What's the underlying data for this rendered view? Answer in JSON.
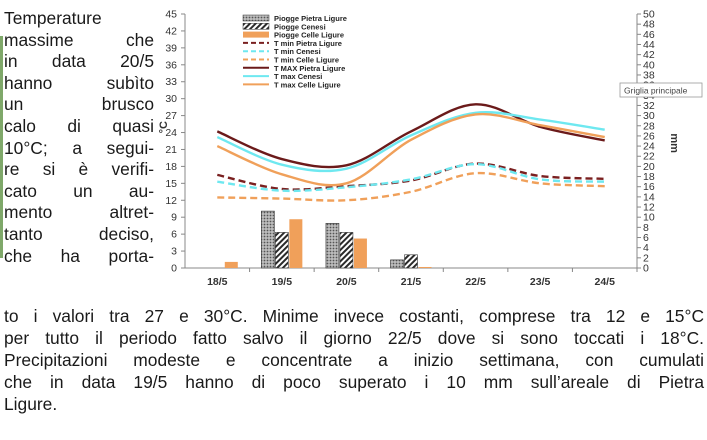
{
  "side_text": [
    "Temperature",
    "massime che",
    "in data 20/5",
    "hanno subìto",
    "un brusco",
    "calo di quasi",
    "10°C; a segui-",
    "re si è verifi-",
    "cato un au-",
    "mento altret-",
    "tanto deciso,",
    "che ha porta-"
  ],
  "bottom_text": [
    "to i valori tra 27 e 30°C. Minime invece costanti, comprese tra 12 e 15°C",
    "per tutto il periodo fatto salvo il giorno 22/5 dove si sono toccati i 18°C.",
    "Precipitazioni modeste e concentrate a inizio settimana, con cumulati",
    "che in data 19/5 hanno di poco superato i 10 mm sull’areale di Pietra",
    "Ligure."
  ],
  "tooltip": "Griglia principale",
  "chart_data": {
    "type": "line",
    "categories": [
      "18/5",
      "19/5",
      "20/5",
      "21/5",
      "22/5",
      "23/5",
      "24/5"
    ],
    "ylabel": "°C",
    "y2label": "mm",
    "ylim": [
      0,
      45
    ],
    "yticks": [
      0,
      3,
      6,
      9,
      12,
      15,
      18,
      21,
      24,
      27,
      30,
      33,
      36,
      39,
      42,
      45
    ],
    "y2lim": [
      0,
      50
    ],
    "y2ticks": [
      0,
      2,
      4,
      6,
      8,
      10,
      12,
      14,
      16,
      18,
      20,
      22,
      24,
      26,
      28,
      30,
      32,
      34,
      36,
      38,
      40,
      42,
      44,
      46,
      48,
      50
    ],
    "legend_position": "top-left",
    "grid": false,
    "bars": [
      {
        "name": "Piogge Pietra Ligure",
        "color": "#9a9a9a",
        "pattern": "dots",
        "values": [
          0,
          11.2,
          8.8,
          1.6,
          0,
          0,
          0
        ]
      },
      {
        "name": "Piogge Cenesi",
        "color": "#2a2a2a",
        "pattern": "hatch",
        "values": [
          0,
          7.0,
          7.0,
          2.6,
          0,
          0,
          0
        ]
      },
      {
        "name": "Piogge Celle Ligure",
        "color": "#f0a05a",
        "pattern": "solid",
        "values": [
          1.2,
          9.6,
          5.8,
          0.2,
          0,
          0,
          0
        ]
      }
    ],
    "lines": [
      {
        "name": "T min Pietra Ligure",
        "color": "#7a2020",
        "dash": "dashed",
        "values": [
          16.5,
          14.0,
          14.5,
          15.5,
          18.5,
          16.3,
          15.8
        ]
      },
      {
        "name": "T min Cenesi",
        "color": "#6ee8f0",
        "dash": "dashed",
        "values": [
          15.3,
          13.7,
          14.3,
          15.7,
          18.4,
          15.7,
          15.3
        ]
      },
      {
        "name": "T min Celle Ligure",
        "color": "#f0a05a",
        "dash": "dashed",
        "values": [
          12.5,
          12.3,
          12.0,
          13.5,
          16.8,
          15.0,
          14.5
        ]
      },
      {
        "name": "T MAX Pietra Ligure",
        "color": "#6b1a1a",
        "dash": "solid",
        "values": [
          24.2,
          19.3,
          18.2,
          24.2,
          29.0,
          25.0,
          22.6
        ]
      },
      {
        "name": "T max Cenesi",
        "color": "#6ee8f0",
        "dash": "solid",
        "values": [
          23.2,
          18.3,
          17.6,
          23.5,
          27.5,
          26.3,
          24.5
        ]
      },
      {
        "name": "T max Celle Ligure",
        "color": "#f0a05a",
        "dash": "solid",
        "values": [
          21.6,
          16.6,
          15.0,
          22.7,
          27.2,
          25.3,
          23.2
        ]
      }
    ]
  }
}
